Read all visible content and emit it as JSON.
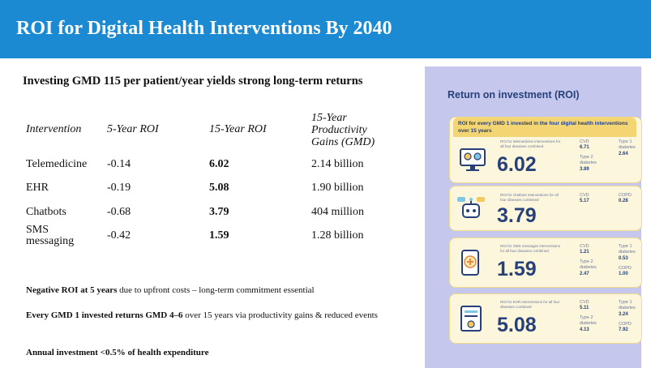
{
  "header": {
    "title": "ROI for Digital Health Interventions By 2040",
    "bar_color": "#1b8ad3"
  },
  "subtitle": "Investing GMD 115 per patient/year yields strong long-term returns",
  "table": {
    "headers": {
      "intervention": "Intervention",
      "roi5": "5-Year ROI",
      "roi15": "15-Year ROI",
      "productivity": [
        "15-Year",
        "Productivity",
        "Gains (GMD)"
      ]
    },
    "rows": [
      {
        "name": "Telemedicine",
        "roi5": "-0.14",
        "roi15": "6.02",
        "gains": "2.14 billion"
      },
      {
        "name": "EHR",
        "roi5": "-0.19",
        "roi15": "5.08",
        "gains": "1.90 billion"
      },
      {
        "name": "Chatbots",
        "roi5": "-0.68",
        "roi15": "3.79",
        "gains": "404 million"
      },
      {
        "name_lines": [
          "SMS",
          "messaging"
        ],
        "roi5": "-0.42",
        "roi15": "1.59",
        "gains": "1.28 billion"
      }
    ]
  },
  "notes": [
    {
      "bold": "Negative ROI at 5 years",
      "rest": " due to upfront costs – long-term commitment essential"
    },
    {
      "bold": "Every GMD 1 invested returns GMD 4–6",
      "rest": " over 15 years via productivity gains & reduced events"
    },
    {
      "bold": "Annual investment <0.5% of health expenditure",
      "rest": ""
    }
  ],
  "infographic": {
    "title": "Return on investment (ROI)",
    "header": "ROI for every GMD 1 invested in the four digital health interventions over 15 years",
    "cards": [
      {
        "icon": "telemedicine-icon",
        "micro": "ROI for telemedicine interventions for all four diseases combined",
        "value": "6.02",
        "stats": [
          {
            "label": "CVD",
            "value": "6.71"
          },
          {
            "label": "Type 2 diabetes",
            "value": "3.89"
          },
          {
            "label": "Type 1 diabetes",
            "value": "2.64"
          }
        ]
      },
      {
        "icon": "chatbot-icon",
        "micro": "ROI for chatbots interventions for all four diseases combined",
        "value": "3.79",
        "stats": [
          {
            "label": "CVD",
            "value": "5.17"
          },
          {
            "label": "COPD",
            "value": "0.28"
          }
        ]
      },
      {
        "icon": "sms-icon",
        "micro": "ROI for SMS messages interventions for all four diseases combined",
        "value": "1.59",
        "stats": [
          {
            "label": "CVD",
            "value": "1.21"
          },
          {
            "label": "Type 2 diabetes",
            "value": "2.47"
          },
          {
            "label": "Type 1 diabetes",
            "value": "0.53"
          },
          {
            "label": "COPD",
            "value": "1.00"
          }
        ]
      },
      {
        "icon": "ehr-icon",
        "micro": "ROI for EHR interventions for all four diseases combined",
        "value": "5.08",
        "stats": [
          {
            "label": "CVD",
            "value": "5.11"
          },
          {
            "label": "Type 2 diabetes",
            "value": "4.13"
          },
          {
            "label": "Type 1 diabetes",
            "value": "3.24"
          },
          {
            "label": "COPD",
            "value": "7.92"
          }
        ]
      }
    ]
  }
}
